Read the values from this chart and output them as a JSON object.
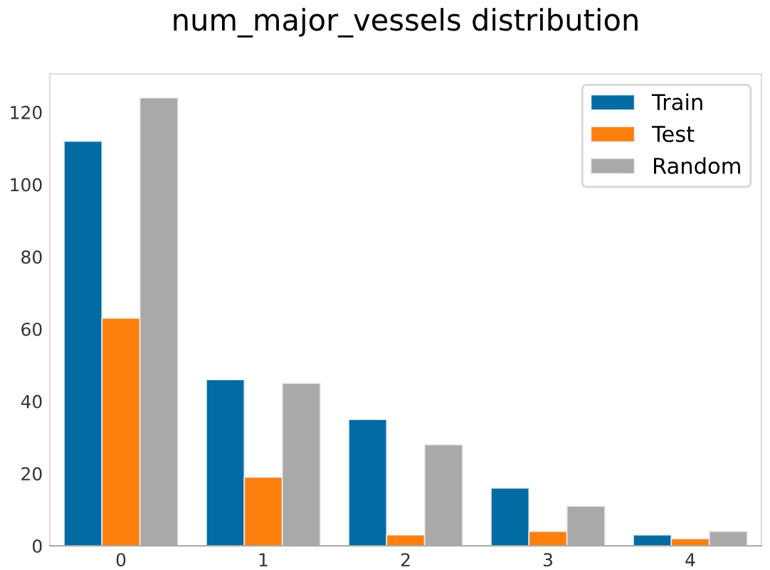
{
  "chart_data": {
    "type": "bar",
    "title": "num_major_vessels distribution",
    "categories": [
      "0",
      "1",
      "2",
      "3",
      "4"
    ],
    "series": [
      {
        "name": "Train",
        "color": "#016ba4",
        "values": [
          112,
          46,
          35,
          16,
          3
        ]
      },
      {
        "name": "Test",
        "color": "#fd7f0e",
        "values": [
          63,
          19,
          3,
          4,
          2
        ]
      },
      {
        "name": "Random",
        "color": "#a9a9a9",
        "values": [
          124,
          45,
          28,
          11,
          4
        ]
      }
    ],
    "ylim": [
      0,
      130.6
    ],
    "yticks": [
      0,
      20,
      40,
      60,
      80,
      100,
      120
    ],
    "grid": false,
    "legend": "top right"
  }
}
